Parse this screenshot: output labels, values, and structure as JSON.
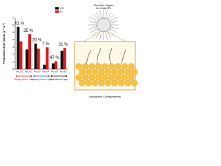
{
  "chart_data": {
    "type": "bar",
    "y_label": "Production Rate (mmol g⁻¹ h⁻¹)",
    "categories": [
      "Pd-Cu-1",
      "Pd-Cu-2",
      "Pd-Cu-3",
      "Pd-Cu-4",
      "Pd-Cu-5",
      "Pd-Cu-6"
    ],
    "series": [
      {
        "name": "CO",
        "color": "#111111",
        "values": [
          5.8,
          2.7,
          3.5,
          0.6,
          0.8,
          2.5
        ]
      },
      {
        "name": "H₂",
        "color": "#e0161b",
        "values": [
          3.8,
          4.8,
          2.8,
          3.0,
          1.1,
          2.9
        ]
      }
    ],
    "annotations": [
      "61 %",
      "35 %",
      "20 %",
      "7 %",
      "47 %",
      "21 %"
    ],
    "groups": [
      {
        "label": "Straight Bound Caps",
        "color": "#e0161b",
        "span": [
          0,
          1
        ]
      },
      {
        "label": "Partially Bound Caps",
        "color": "#1f4fa8",
        "span": [
          2,
          3
        ]
      },
      {
        "label": "Both Bound Caps",
        "color": "#111111",
        "span": [
          4,
          5
        ]
      }
    ],
    "ylim": [
      0,
      7
    ],
    "yticks": [
      0,
      1,
      2,
      3,
      4,
      5,
      6,
      7
    ]
  },
  "diagram": {
    "title": [
      "Oleic Acid Capped",
      "Cu Oxide NPs"
    ],
    "caption": "Adsorption Configurations"
  }
}
